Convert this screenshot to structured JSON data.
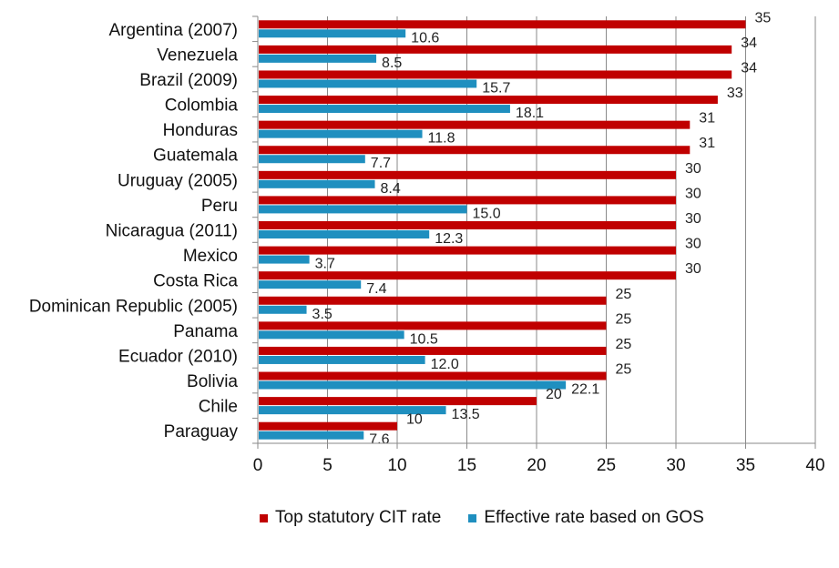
{
  "chart_data": {
    "type": "bar",
    "orientation": "horizontal",
    "categories": [
      "Argentina (2007)",
      "Venezuela",
      "Brazil (2009)",
      "Colombia",
      "Honduras",
      "Guatemala",
      "Uruguay (2005)",
      "Peru",
      "Nicaragua (2011)",
      "Mexico",
      "Costa Rica",
      "Dominican Republic (2005)",
      "Panama",
      "Ecuador (2010)",
      "Bolivia",
      "Chile",
      "Paraguay"
    ],
    "series": [
      {
        "name": "Top statutory CIT rate",
        "color": "#c00000",
        "values": [
          35,
          34,
          34,
          33,
          31,
          31,
          30,
          30,
          30,
          30,
          30,
          25,
          25,
          25,
          25,
          20,
          10
        ],
        "labels": [
          "35",
          "34",
          "34",
          "33",
          "31",
          "31",
          "30",
          "30",
          "30",
          "30",
          "30",
          "25",
          "25",
          "25",
          "25",
          "20",
          "10"
        ]
      },
      {
        "name": "Effective rate based on GOS",
        "color": "#1f8fbf",
        "values": [
          10.6,
          8.5,
          15.7,
          18.1,
          11.8,
          7.7,
          8.4,
          15.0,
          12.3,
          3.7,
          7.4,
          3.5,
          10.5,
          12.0,
          22.1,
          13.5,
          7.6
        ],
        "labels": [
          "10.6",
          "8.5",
          "15.7",
          "18.1",
          "11.8",
          "7.7",
          "8.4",
          "15.0",
          "12.3",
          "3.7",
          "7.4",
          "3.5",
          "10.5",
          "12.0",
          "22.1",
          "13.5",
          "7.6"
        ]
      }
    ],
    "xlim": [
      0,
      40
    ],
    "xticks": [
      "0",
      "5",
      "10",
      "15",
      "20",
      "25",
      "30",
      "35",
      "40"
    ],
    "grid": "vertical",
    "legend_position": "bottom"
  }
}
